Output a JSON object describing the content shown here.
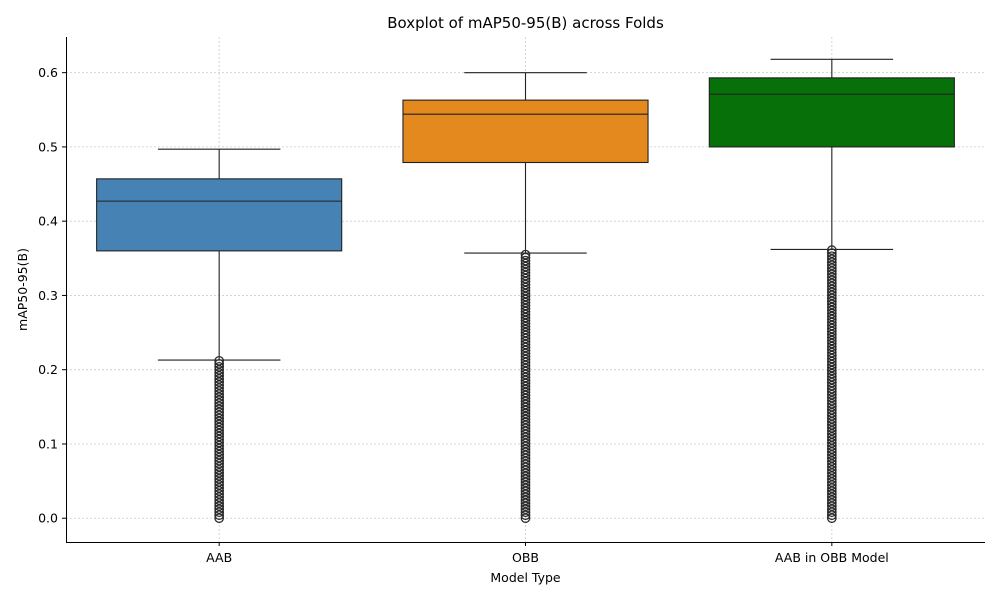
{
  "chart_data": {
    "type": "boxplot",
    "title": "Boxplot of mAP50-95(B) across Folds",
    "xlabel": "Model Type",
    "ylabel": "mAP50-95(B)",
    "ylim": [
      -0.032,
      0.648
    ],
    "yticks": [
      0.0,
      0.1,
      0.2,
      0.3,
      0.4,
      0.5,
      0.6
    ],
    "ytick_labels": [
      "0.0",
      "0.1",
      "0.2",
      "0.3",
      "0.4",
      "0.5",
      "0.6"
    ],
    "grid": true,
    "categories": [
      "AAB",
      "OBB",
      "AAB in OBB Model"
    ],
    "boxes": [
      {
        "category": "AAB",
        "color": "#4682b4",
        "whisker_low": 0.213,
        "q1": 0.36,
        "median": 0.427,
        "q3": 0.457,
        "whisker_high": 0.497,
        "outlier_range": [
          0.0,
          0.212
        ]
      },
      {
        "category": "OBB",
        "color": "#e3891e",
        "whisker_low": 0.357,
        "q1": 0.479,
        "median": 0.544,
        "q3": 0.563,
        "whisker_high": 0.6,
        "outlier_range": [
          0.0,
          0.355
        ]
      },
      {
        "category": "AAB in OBB Model",
        "color": "#087008",
        "whisker_low": 0.362,
        "q1": 0.5,
        "median": 0.571,
        "q3": 0.593,
        "whisker_high": 0.618,
        "outlier_range": [
          0.0,
          0.361
        ]
      }
    ]
  }
}
